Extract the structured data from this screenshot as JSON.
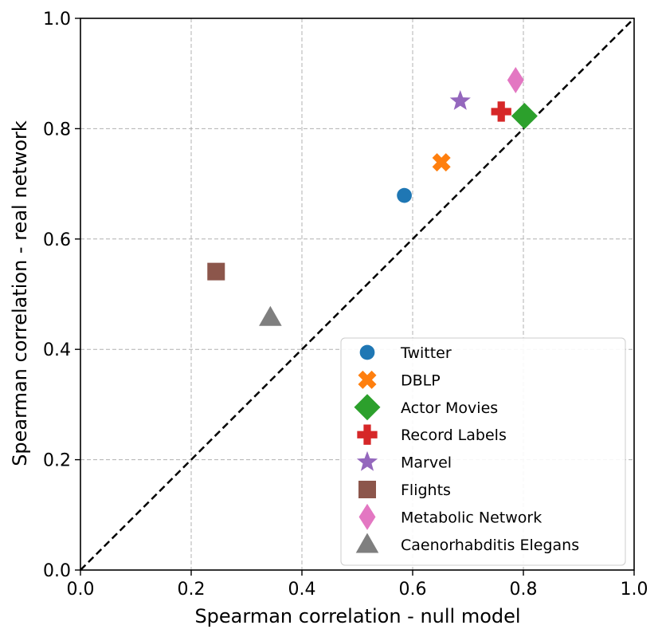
{
  "chart_data": {
    "type": "scatter",
    "title": "",
    "xlabel": "Spearman correlation - null model",
    "ylabel": "Spearman correlation - real network",
    "xlim": [
      0.0,
      1.0
    ],
    "ylim": [
      0.0,
      1.0
    ],
    "xticks": [
      "0.0",
      "0.2",
      "0.4",
      "0.6",
      "0.8",
      "1.0"
    ],
    "yticks": [
      "0.0",
      "0.2",
      "0.4",
      "0.6",
      "0.8",
      "1.0"
    ],
    "grid": true,
    "reference_line": "y = x (dashed black)",
    "legend_position": "lower-right",
    "series": [
      {
        "name": "Twitter",
        "marker": "circle",
        "color": "#1f77b4",
        "x": 0.585,
        "y": 0.679
      },
      {
        "name": "DBLP",
        "marker": "x",
        "color": "#ff7f0e",
        "x": 0.652,
        "y": 0.739
      },
      {
        "name": "Actor Movies",
        "marker": "diamond",
        "color": "#2ca02c",
        "x": 0.802,
        "y": 0.823
      },
      {
        "name": "Record Labels",
        "marker": "plus",
        "color": "#d62728",
        "x": 0.76,
        "y": 0.831
      },
      {
        "name": "Marvel",
        "marker": "star",
        "color": "#9467bd",
        "x": 0.686,
        "y": 0.85
      },
      {
        "name": "Flights",
        "marker": "square",
        "color": "#8c564b",
        "x": 0.245,
        "y": 0.541
      },
      {
        "name": "Metabolic Network",
        "marker": "thin-diamond",
        "color": "#e377c2",
        "x": 0.786,
        "y": 0.888
      },
      {
        "name": "Caenorhabditis Elegans",
        "marker": "triangle",
        "color": "#7f7f7f",
        "x": 0.343,
        "y": 0.458
      }
    ]
  }
}
